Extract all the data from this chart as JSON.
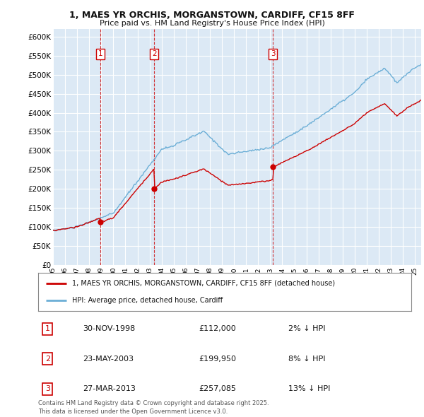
{
  "title_line1": "1, MAES YR ORCHIS, MORGANSTOWN, CARDIFF, CF15 8FF",
  "title_line2": "Price paid vs. HM Land Registry's House Price Index (HPI)",
  "background_color": "#ffffff",
  "plot_bg_color": "#dce9f5",
  "grid_color": "#ffffff",
  "hpi_color": "#6baed6",
  "price_color": "#cc0000",
  "ylim": [
    0,
    620000
  ],
  "yticks": [
    0,
    50000,
    100000,
    150000,
    200000,
    250000,
    300000,
    350000,
    400000,
    450000,
    500000,
    550000,
    600000
  ],
  "sales": [
    {
      "date_num": 1998.92,
      "price": 112000,
      "label": "1"
    },
    {
      "date_num": 2003.39,
      "price": 199950,
      "label": "2"
    },
    {
      "date_num": 2013.23,
      "price": 257085,
      "label": "3"
    }
  ],
  "legend_entries": [
    "1, MAES YR ORCHIS, MORGANSTOWN, CARDIFF, CF15 8FF (detached house)",
    "HPI: Average price, detached house, Cardiff"
  ],
  "table_rows": [
    {
      "num": "1",
      "date": "30-NOV-1998",
      "price": "£112,000",
      "note": "2% ↓ HPI"
    },
    {
      "num": "2",
      "date": "23-MAY-2003",
      "price": "£199,950",
      "note": "8% ↓ HPI"
    },
    {
      "num": "3",
      "date": "27-MAR-2013",
      "price": "£257,085",
      "note": "13% ↓ HPI"
    }
  ],
  "footnote": "Contains HM Land Registry data © Crown copyright and database right 2025.\nThis data is licensed under the Open Government Licence v3.0."
}
